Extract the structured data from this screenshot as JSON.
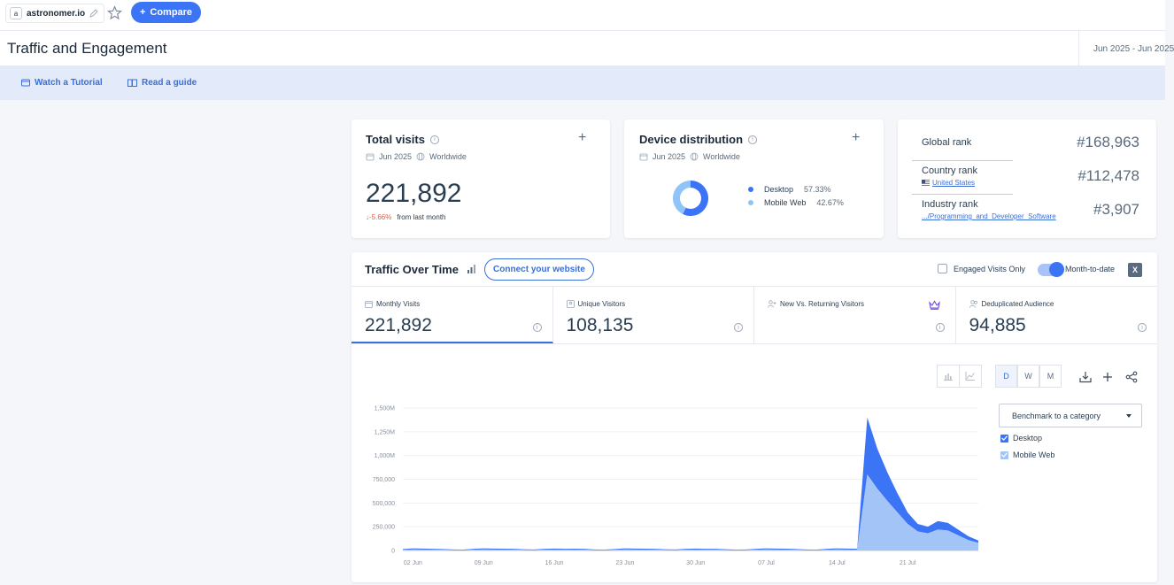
{
  "header": {
    "site_name": "astronomer.io",
    "site_initial": "a",
    "compare_label": "Compare"
  },
  "page": {
    "title": "Traffic and Engagement",
    "date_range": "Jun 2025 - Jun 2025"
  },
  "help": {
    "tutorial_label": "Watch a Tutorial",
    "guide_label": "Read a guide"
  },
  "total_visits": {
    "title": "Total visits",
    "period": "Jun 2025",
    "region": "Worldwide",
    "value": "221,892",
    "change": "-5.66%",
    "change_suffix": "from last month"
  },
  "device_distribution": {
    "title": "Device distribution",
    "period": "Jun 2025",
    "region": "Worldwide",
    "items": [
      {
        "label": "Desktop",
        "pct": "57.33%",
        "value": 57.33,
        "color": "#3b74f5"
      },
      {
        "label": "Mobile Web",
        "pct": "42.67%",
        "value": 42.67,
        "color": "#8ec4f8"
      }
    ]
  },
  "ranks": {
    "global": {
      "label": "Global rank",
      "value": "#168,963"
    },
    "country": {
      "label": "Country rank",
      "value": "#112,478",
      "sub": "United States"
    },
    "industry": {
      "label": "Industry rank",
      "value": "#3,907",
      "sub": ".../Programming_and_Developer_Software"
    }
  },
  "traffic": {
    "title": "Traffic Over Time",
    "connect_label": "Connect your website",
    "engaged_label": "Engaged Visits Only",
    "mtd_label": "Month-to-date",
    "excel_label": "X",
    "metrics": [
      {
        "label": "Monthly Visits",
        "value": "221,892"
      },
      {
        "label": "Unique Visitors",
        "value": "108,135"
      },
      {
        "label": "New Vs. Returning Visitors",
        "value": ""
      },
      {
        "label": "Deduplicated Audience",
        "value": "94,885"
      }
    ],
    "granularity": [
      "D",
      "W",
      "M"
    ],
    "benchmark_label": "Benchmark to a category",
    "legend": [
      {
        "label": "Desktop",
        "color": "#3b74f5"
      },
      {
        "label": "Mobile Web",
        "color": "#a3c4f7"
      }
    ]
  },
  "chart_data": {
    "type": "area",
    "x": [
      "Jun 1",
      "Jun 2",
      "Jun 3",
      "Jun 4",
      "Jun 5",
      "Jun 6",
      "Jun 7",
      "Jun 8",
      "Jun 9",
      "Jun 10",
      "Jun 11",
      "Jun 12",
      "Jun 13",
      "Jun 14",
      "Jun 15",
      "Jun 16",
      "Jun 17",
      "Jun 18",
      "Jun 19",
      "Jun 20",
      "Jun 21",
      "Jun 22",
      "Jun 23",
      "Jun 24",
      "Jun 25",
      "Jun 26",
      "Jun 27",
      "Jun 28",
      "Jun 29",
      "Jun 30",
      "Jul 1",
      "Jul 2",
      "Jul 3",
      "Jul 4",
      "Jul 5",
      "Jul 6",
      "Jul 7",
      "Jul 8",
      "Jul 9",
      "Jul 10",
      "Jul 11",
      "Jul 12",
      "Jul 13",
      "Jul 14",
      "Jul 15",
      "Jul 16",
      "Jul 17",
      "Jul 18",
      "Jul 19",
      "Jul 20",
      "Jul 21",
      "Jul 22",
      "Jul 23",
      "Jul 24",
      "Jul 25",
      "Jul 26",
      "Jul 27",
      "Jul 28"
    ],
    "series": [
      {
        "name": "Desktop",
        "values": [
          8000,
          12000,
          11000,
          9000,
          8000,
          6000,
          5000,
          9000,
          12000,
          11000,
          10000,
          9000,
          7000,
          6000,
          9000,
          11000,
          10000,
          10000,
          9000,
          6000,
          5000,
          8000,
          12000,
          11000,
          10000,
          9000,
          7000,
          6000,
          9000,
          11000,
          10000,
          9000,
          7000,
          5000,
          6000,
          10000,
          12000,
          11000,
          10000,
          8000,
          6000,
          5000,
          9000,
          12000,
          11000,
          10000,
          600000,
          420000,
          300000,
          200000,
          120000,
          80000,
          70000,
          90000,
          80000,
          60000,
          40000,
          25000
        ]
      },
      {
        "name": "Mobile Web",
        "values": [
          7000,
          10000,
          9000,
          8000,
          7000,
          5000,
          4000,
          8000,
          10000,
          9000,
          9000,
          8000,
          6000,
          5000,
          8000,
          9000,
          8000,
          9000,
          8000,
          5000,
          4000,
          7000,
          10000,
          9000,
          9000,
          8000,
          6000,
          5000,
          8000,
          9000,
          8000,
          8000,
          6000,
          4000,
          5000,
          8000,
          10000,
          9000,
          9000,
          7000,
          5000,
          4000,
          8000,
          10000,
          9000,
          9000,
          800000,
          650000,
          520000,
          400000,
          280000,
          200000,
          180000,
          220000,
          210000,
          160000,
          110000,
          80000
        ]
      }
    ],
    "xticks": [
      "02 Jun",
      "09 Jun",
      "16 Jun",
      "23 Jun",
      "30 Jun",
      "07 Jul",
      "14 Jul",
      "21 Jul"
    ],
    "yticks": [
      "0",
      "250,000",
      "500,000",
      "750,000",
      "1,000M",
      "1,250M",
      "1,500M"
    ],
    "ylim": [
      0,
      1500000
    ],
    "stacked": true,
    "grid": true
  }
}
